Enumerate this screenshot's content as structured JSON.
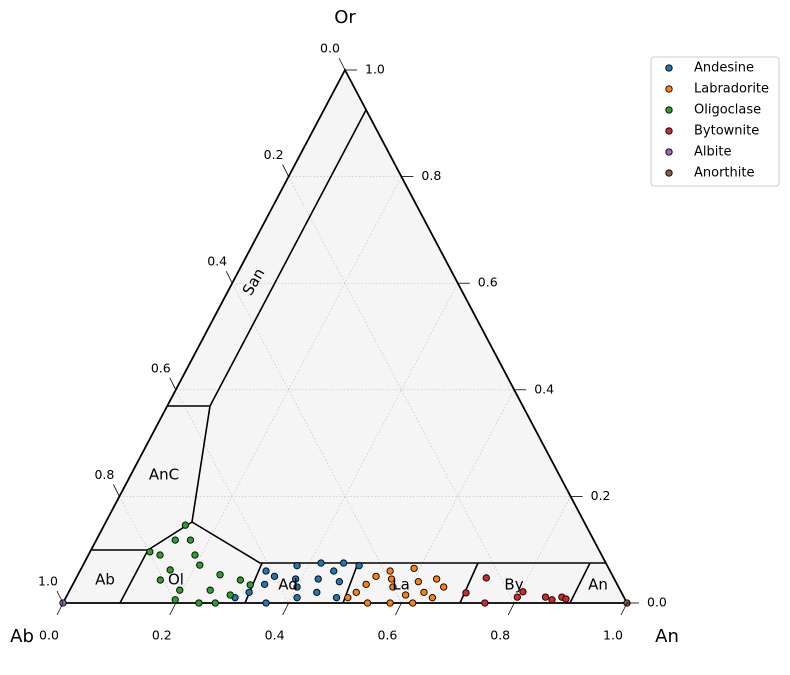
{
  "chart_data": {
    "type": "ternary-scatter",
    "axis_labels": {
      "top": "Or",
      "left": "Ab",
      "right": "An"
    },
    "an_ticks": [
      {
        "value": 0,
        "label": "0.0"
      },
      0.2,
      0.4,
      0.6,
      0.8,
      {
        "value": 1,
        "label": "1.0"
      }
    ],
    "or_ticks": [
      {
        "value": 0,
        "label": "0.0"
      },
      0.2,
      0.4,
      0.6,
      0.8,
      {
        "value": 1,
        "label": "1.0"
      }
    ],
    "ab_ticks": [
      {
        "value": 0,
        "label": "0.0"
      },
      0.2,
      0.4,
      0.6,
      0.8,
      {
        "value": 1,
        "label": "1.0"
      }
    ],
    "grid": true,
    "region_labels": [
      "San",
      "AnC",
      "Ab",
      "Ol",
      "Ad",
      "La",
      "By",
      "An"
    ],
    "legend": "upper right",
    "series": [
      {
        "name": "Andesine",
        "color": "#1f77b4",
        "an": [
          0.32,
          0.35,
          0.38,
          0.4,
          0.42,
          0.45,
          0.47,
          0.49,
          0.36,
          0.41,
          0.44,
          0.48,
          0.33,
          0.39,
          0.46,
          0.43,
          0.34,
          0.3
        ],
        "or": [
          0.02,
          0.05,
          0.07,
          0.03,
          0.075,
          0.06,
          0.04,
          0.07,
          0.0,
          0.01,
          0.02,
          0.01,
          0.06,
          0.045,
          0.075,
          0.045,
          0.035,
          0.01
        ]
      },
      {
        "name": "Labradorite",
        "color": "#ff7f0e",
        "an": [
          0.51,
          0.53,
          0.55,
          0.57,
          0.59,
          0.61,
          0.63,
          0.65,
          0.54,
          0.58,
          0.62,
          0.66,
          0.56,
          0.6,
          0.52,
          0.64,
          0.5
        ],
        "or": [
          0.02,
          0.05,
          0.06,
          0.03,
          0.065,
          0.04,
          0.02,
          0.01,
          0.0,
          0.0,
          0.0,
          0.03,
          0.045,
          0.015,
          0.035,
          0.045,
          0.01
        ]
      },
      {
        "name": "Oligoclase",
        "color": "#2ca02c",
        "an": [
          0.144,
          0.14,
          0.127,
          0.106,
          0.159,
          0.207,
          0.252,
          0.293,
          0.241,
          0.195,
          0.249,
          0.167,
          0.289,
          0.151,
          0.315,
          0.189,
          0.196,
          0.27
        ],
        "or": [
          0.146,
          0.118,
          0.09,
          0.096,
          0.062,
          0.071,
          0.053,
          0.043,
          0.0,
          0.024,
          0.024,
          0.118,
          0.015,
          0.043,
          0.034,
          0.09,
          0.006,
          0.0
        ]
      },
      {
        "name": "Bytownite",
        "color": "#d62728",
        "an": [
          0.727,
          0.705,
          0.748,
          0.8,
          0.85,
          0.864,
          0.879,
          0.888,
          0.805
        ],
        "or": [
          0.047,
          0.019,
          0.0,
          0.011,
          0.011,
          0.006,
          0.011,
          0.0075,
          0.021
        ]
      },
      {
        "name": "Albite",
        "color": "#9467bd",
        "an": [
          0.0
        ],
        "or": [
          0.0
        ]
      },
      {
        "name": "Anorthite",
        "color": "#8c564b",
        "an": [
          1.0
        ],
        "or": [
          0.0
        ]
      }
    ]
  }
}
